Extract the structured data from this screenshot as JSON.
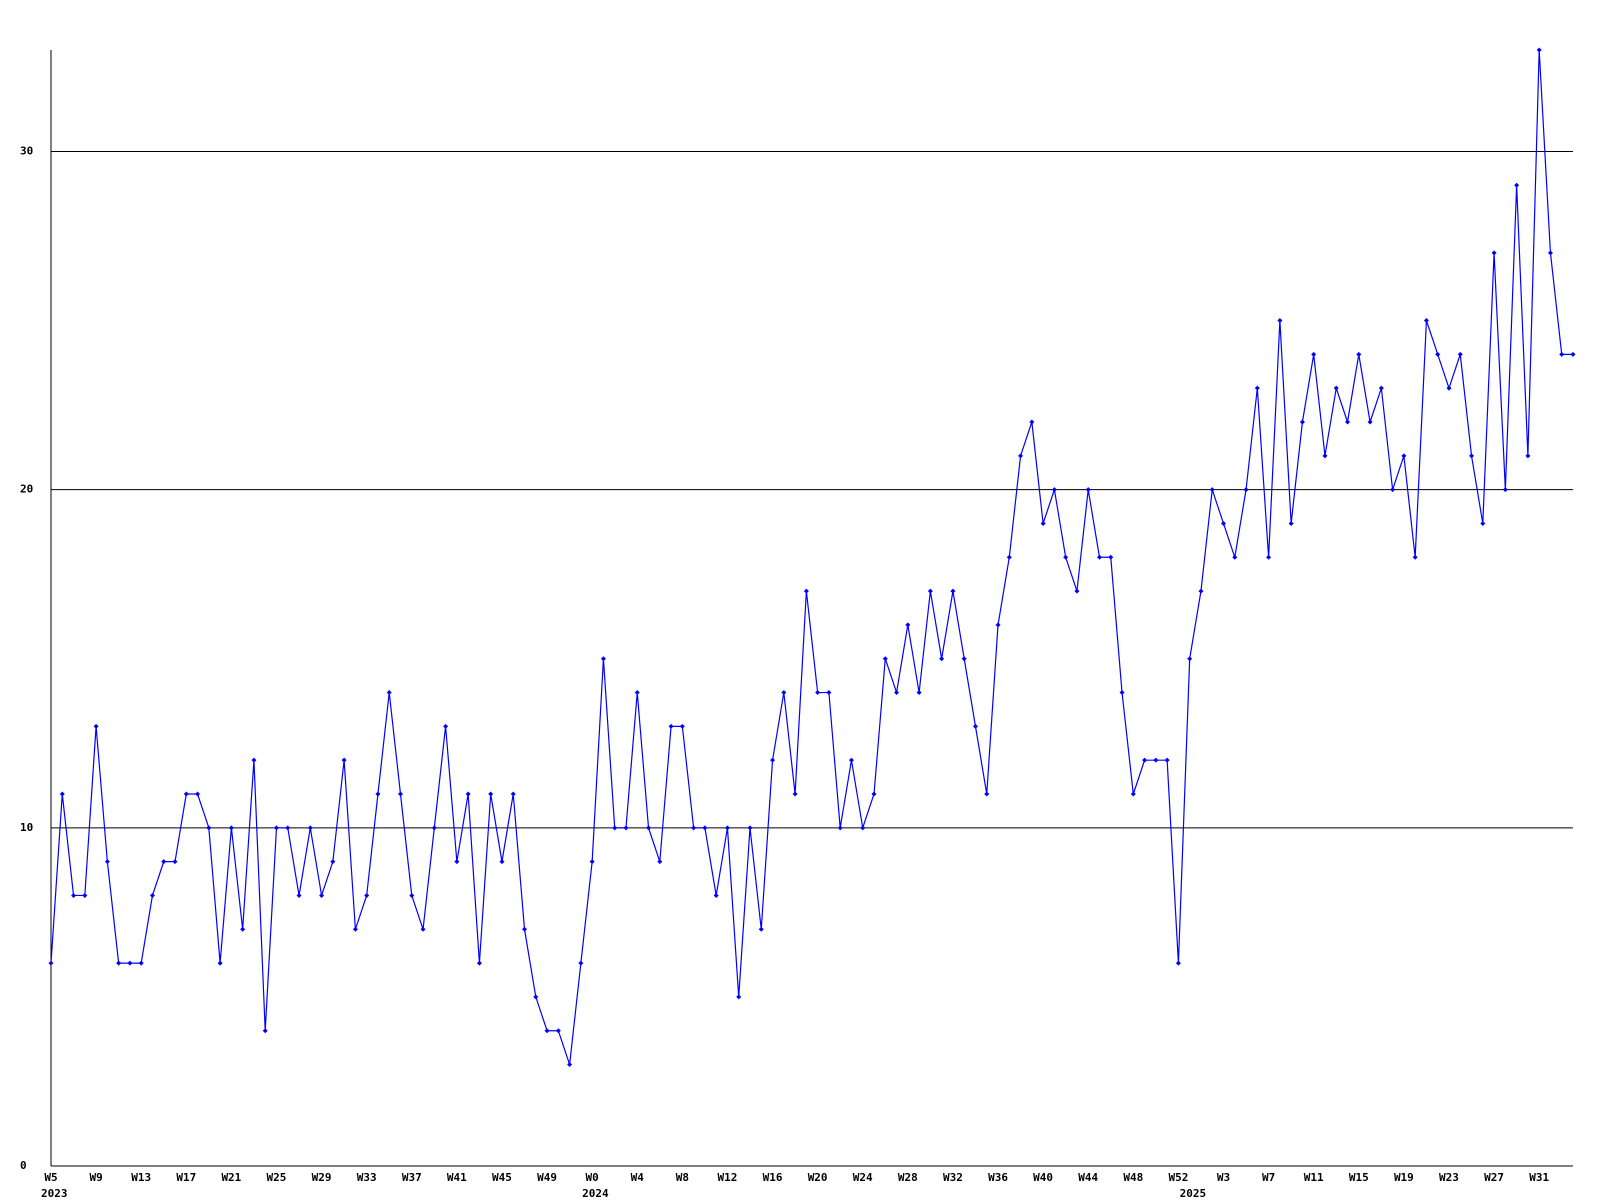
{
  "chart_data": {
    "type": "line",
    "categories": [
      "W5",
      null,
      null,
      null,
      "W9",
      null,
      null,
      null,
      "W13",
      null,
      null,
      null,
      "W17",
      null,
      null,
      null,
      "W21",
      null,
      null,
      null,
      "W25",
      null,
      null,
      null,
      "W29",
      null,
      null,
      null,
      "W33",
      null,
      null,
      null,
      "W37",
      null,
      null,
      null,
      "W41",
      null,
      null,
      null,
      "W45",
      null,
      null,
      null,
      "W49",
      null,
      null,
      null,
      "W0",
      null,
      null,
      null,
      "W4",
      null,
      null,
      null,
      "W8",
      null,
      null,
      null,
      "W12",
      null,
      null,
      null,
      "W16",
      null,
      null,
      null,
      "W20",
      null,
      null,
      null,
      "W24",
      null,
      null,
      null,
      "W28",
      null,
      null,
      null,
      "W32",
      null,
      null,
      null,
      "W36",
      null,
      null,
      null,
      "W40",
      null,
      null,
      null,
      "W44",
      null,
      null,
      null,
      "W48",
      null,
      null,
      null,
      "W52",
      null,
      null,
      null,
      "W3",
      null,
      null,
      null,
      "W7",
      null,
      null,
      null,
      "W11",
      null,
      null,
      null,
      "W15",
      null,
      null,
      null,
      "W19",
      null,
      null,
      null,
      "W23",
      null,
      null,
      null,
      "W27",
      null,
      null,
      null,
      "W31",
      null,
      null,
      null
    ],
    "year_categories": [
      "2023",
      null,
      null,
      null,
      null,
      null,
      null,
      null,
      null,
      null,
      null,
      null,
      null,
      null,
      null,
      null,
      null,
      null,
      null,
      null,
      null,
      null,
      null,
      null,
      null,
      null,
      null,
      null,
      null,
      null,
      null,
      null,
      null,
      null,
      null,
      null,
      null,
      null,
      null,
      null,
      null,
      null,
      null,
      null,
      null,
      null,
      null,
      null,
      "2024",
      null,
      null,
      null,
      null,
      null,
      null,
      null,
      null,
      null,
      null,
      null,
      null,
      null,
      null,
      null,
      null,
      null,
      null,
      null,
      null,
      null,
      null,
      null,
      null,
      null,
      null,
      null,
      null,
      null,
      null,
      null,
      null,
      null,
      null,
      null,
      null,
      null,
      null,
      null,
      null,
      null,
      null,
      null,
      null,
      null,
      null,
      null,
      null,
      null,
      null,
      null,
      null,
      "2025",
      null,
      null,
      null,
      null,
      null,
      null,
      null,
      null,
      null,
      null,
      null,
      null,
      null,
      null,
      null,
      null,
      null,
      null,
      null,
      null,
      null,
      null,
      null,
      null,
      null,
      null,
      null,
      null,
      null,
      null,
      null,
      null,
      null,
      null
    ],
    "series": [
      {
        "color": "#0000ff",
        "values": [
          6,
          11,
          8,
          8,
          13,
          9,
          6,
          6,
          6,
          8,
          9,
          9,
          11,
          11,
          10,
          6,
          10,
          7,
          12,
          4,
          10,
          10,
          8,
          10,
          8,
          9,
          12,
          7,
          8,
          11,
          14,
          11,
          8,
          7,
          10,
          13,
          9,
          11,
          6,
          11,
          9,
          11,
          7,
          5,
          4,
          4,
          3,
          6,
          9,
          15,
          10,
          10,
          14,
          10,
          9,
          13,
          13,
          10,
          10,
          8,
          10,
          5,
          10,
          7,
          12,
          14,
          11,
          17,
          14,
          14,
          10,
          12,
          10,
          11,
          15,
          14,
          16,
          14,
          17,
          15,
          17,
          15,
          13,
          11,
          16,
          18,
          21,
          22,
          19,
          20,
          18,
          17,
          20,
          18,
          18,
          14,
          11,
          12,
          12,
          12,
          6,
          15,
          17,
          20,
          19,
          18,
          20,
          23,
          18,
          25,
          19,
          22,
          24,
          21,
          23,
          22,
          24,
          22,
          23,
          20,
          21,
          18,
          25,
          24,
          23,
          24,
          21,
          19,
          27,
          20,
          29,
          21,
          33,
          27,
          24,
          24
        ]
      }
    ],
    "ylim": [
      0,
      33
    ],
    "yticks": [
      0,
      10,
      20,
      30
    ],
    "grid": true
  }
}
